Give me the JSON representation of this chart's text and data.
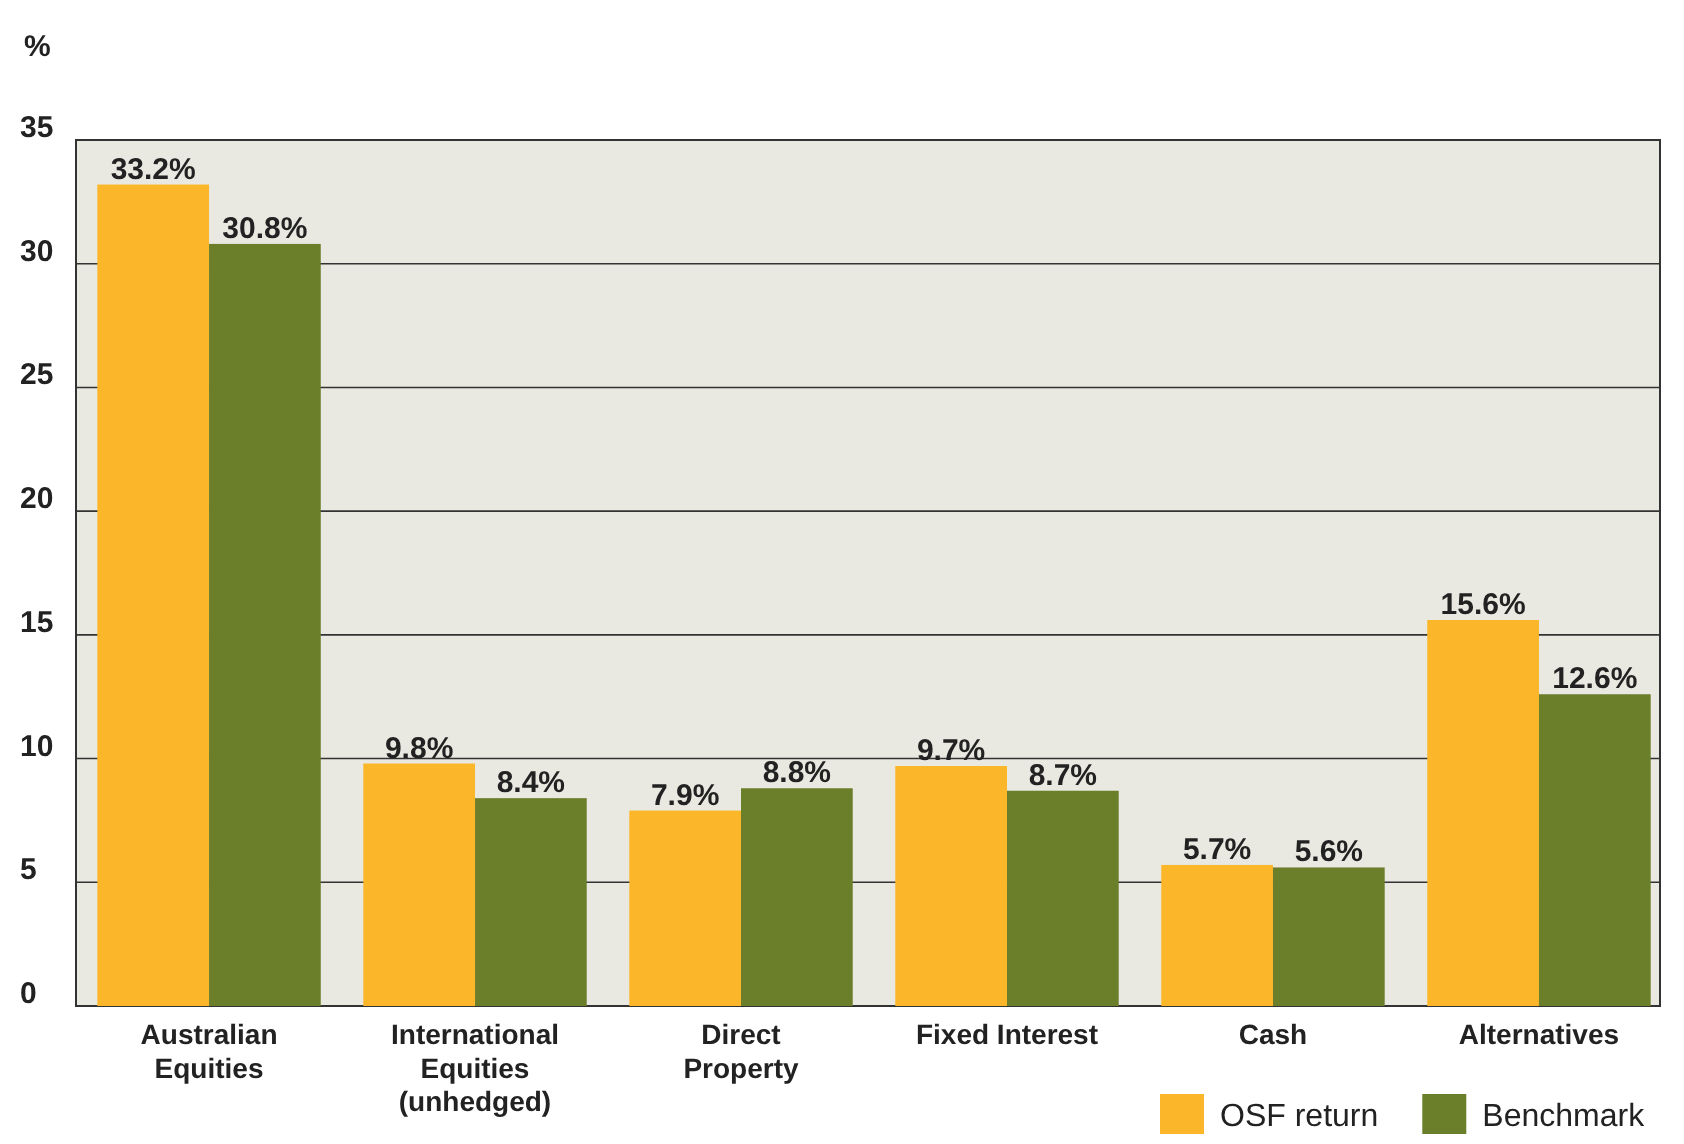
{
  "chart_data": {
    "type": "bar",
    "ylabel": "%",
    "categories": [
      "Australian Equities",
      "International Equities (unhedged)",
      "Direct Property",
      "Fixed Interest",
      "Cash",
      "Alternatives"
    ],
    "series": [
      {
        "name": "OSF return",
        "color": "#fbb629",
        "values": [
          33.2,
          9.8,
          7.9,
          9.7,
          5.7,
          15.6
        ],
        "value_labels": [
          "33.2%",
          "9.8%",
          "7.9%",
          "9.7%",
          "5.7%",
          "15.6%"
        ]
      },
      {
        "name": "Benchmark",
        "color": "#6b7e2a",
        "values": [
          30.8,
          8.4,
          8.8,
          8.7,
          5.6,
          12.6
        ],
        "value_labels": [
          "30.8%",
          "8.4%",
          "8.8%",
          "8.7%",
          "5.6%",
          "12.6%"
        ]
      }
    ],
    "ylim": [
      0,
      35
    ],
    "yticks": [
      0,
      5,
      10,
      15,
      20,
      25,
      30,
      35
    ],
    "grid": "y",
    "legend": "bottom right"
  }
}
